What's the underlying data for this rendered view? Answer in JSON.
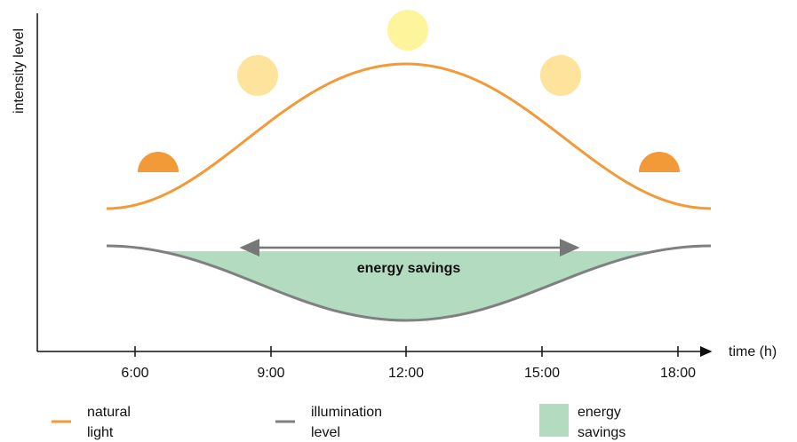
{
  "axis": {
    "y_label": "intensity level",
    "x_label": "time (h)"
  },
  "x_ticks": [
    "6:00",
    "9:00",
    "12:00",
    "15:00",
    "18:00"
  ],
  "annotation": "energy savings",
  "legend": [
    {
      "lines": [
        "natural",
        "light"
      ]
    },
    {
      "lines": [
        "illumination",
        "level"
      ]
    },
    {
      "lines": [
        "energy",
        "savings"
      ]
    }
  ]
}
